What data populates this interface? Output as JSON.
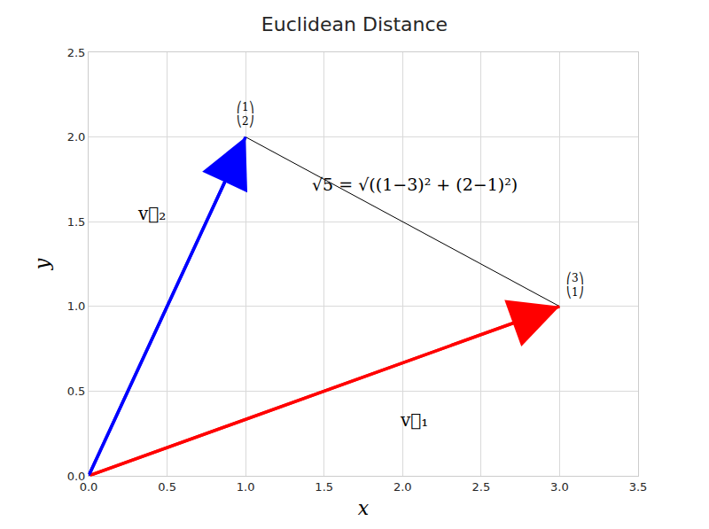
{
  "chart_data": {
    "type": "vector",
    "title": "Euclidean Distance",
    "x_label": "x",
    "y_label": "y",
    "xlim": [
      0,
      3.5
    ],
    "ylim": [
      0,
      2.5
    ],
    "xticks": [
      {
        "value": 0,
        "label": "0.0"
      },
      0.5,
      {
        "value": 1,
        "label": "1.0"
      },
      1.5,
      {
        "value": 2,
        "label": "2.0"
      },
      2.5,
      {
        "value": 3,
        "label": "3.0"
      },
      3.5
    ],
    "yticks": [
      {
        "value": 0,
        "label": "0.0"
      },
      0.5,
      {
        "value": 1,
        "label": "1.0"
      },
      1.5,
      {
        "value": 2,
        "label": "2.0"
      },
      2.5
    ],
    "grid": true,
    "series": [
      {
        "name": "v⃗₁",
        "color": "#ff0000",
        "from": [
          0,
          0
        ],
        "to": [
          3,
          1
        ],
        "tip_label": "⎛3⎞\n⎝1⎠"
      },
      {
        "name": "v⃗₂",
        "color": "#0000ff",
        "from": [
          0,
          0
        ],
        "to": [
          1,
          2
        ],
        "tip_label": "⎛1⎞\n⎝2⎠"
      }
    ],
    "distance": {
      "label": "√5 = √((1−3)² + (2−1)²)",
      "color": "#000000"
    }
  }
}
